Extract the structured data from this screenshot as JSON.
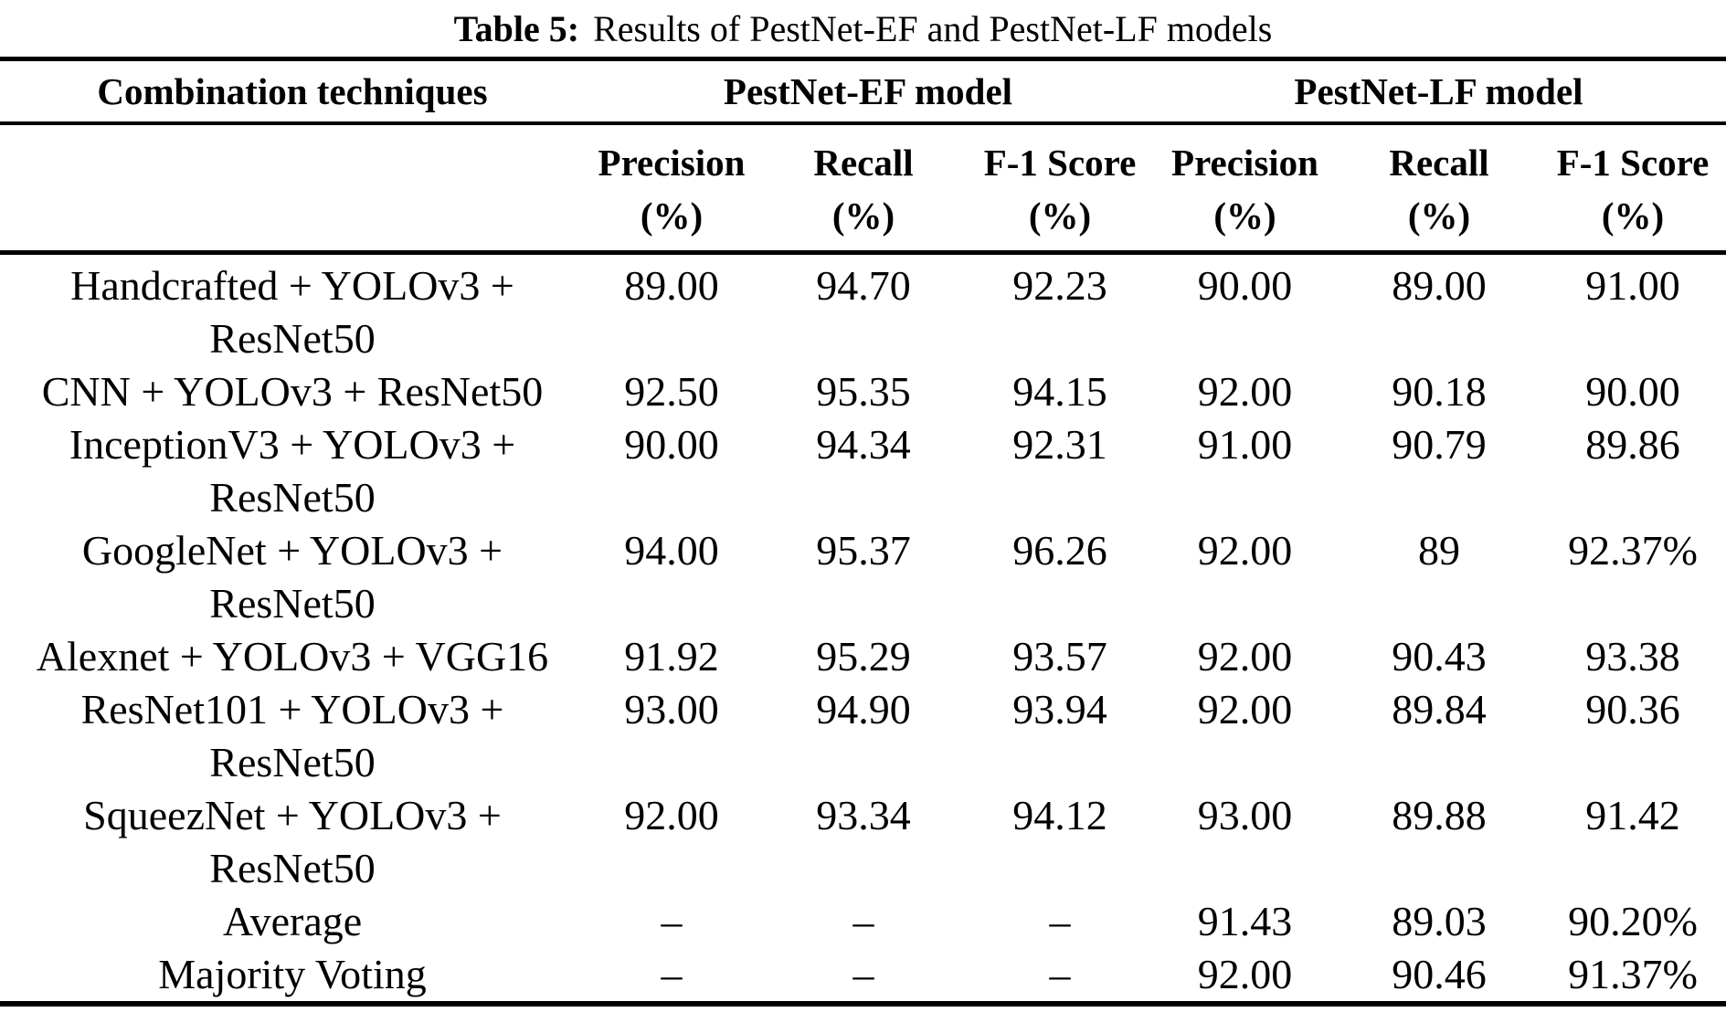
{
  "caption": {
    "label": "Table 5:",
    "text": "Results of PestNet-EF and PestNet-LF models"
  },
  "table": {
    "group_headers": [
      {
        "label": "Combination techniques"
      },
      {
        "label": "PestNet-EF model"
      },
      {
        "label": "PestNet-LF model"
      }
    ],
    "metric_headers": [
      "Precision\n(%)",
      "Recall\n(%)",
      "F-1 Score\n(%)",
      "Precision\n(%)",
      "Recall\n(%)",
      "F-1 Score\n(%)"
    ],
    "rows": [
      {
        "technique": "Handcrafted + YOLOv3 +\nResNet50",
        "values": [
          "89.00",
          "94.70",
          "92.23",
          "90.00",
          "89.00",
          "91.00"
        ]
      },
      {
        "technique": "CNN + YOLOv3 + ResNet50",
        "values": [
          "92.50",
          "95.35",
          "94.15",
          "92.00",
          "90.18",
          "90.00"
        ]
      },
      {
        "technique": "InceptionV3 + YOLOv3 +\nResNet50",
        "values": [
          "90.00",
          "94.34",
          "92.31",
          "91.00",
          "90.79",
          "89.86"
        ]
      },
      {
        "technique": "GoogleNet + YOLOv3 +\nResNet50",
        "values": [
          "94.00",
          "95.37",
          "96.26",
          "92.00",
          "89",
          "92.37%"
        ]
      },
      {
        "technique": "Alexnet + YOLOv3 + VGG16",
        "values": [
          "91.92",
          "95.29",
          "93.57",
          "92.00",
          "90.43",
          "93.38"
        ]
      },
      {
        "technique": "ResNet101 + YOLOv3 +\nResNet50",
        "values": [
          "93.00",
          "94.90",
          "93.94",
          "92.00",
          "89.84",
          "90.36"
        ]
      },
      {
        "technique": "SqueezNet + YOLOv3 +\nResNet50",
        "values": [
          "92.00",
          "93.34",
          "94.12",
          "93.00",
          "89.88",
          "91.42"
        ]
      },
      {
        "technique": "Average",
        "values": [
          "–",
          "–",
          "–",
          "91.43",
          "89.03",
          "90.20%"
        ]
      },
      {
        "technique": "Majority Voting",
        "values": [
          "–",
          "–",
          "–",
          "92.00",
          "90.46",
          "91.37%"
        ]
      }
    ],
    "colors": {
      "text": "#000000",
      "background": "#ffffff",
      "rule": "#000000"
    }
  }
}
